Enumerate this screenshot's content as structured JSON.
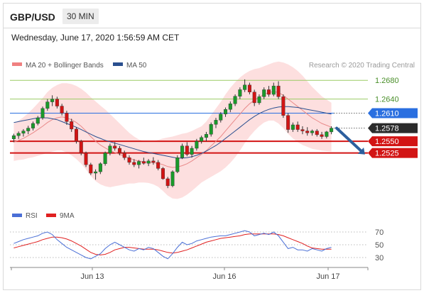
{
  "header": {
    "symbol": "GBP/USD",
    "timeframe": "30 MIN"
  },
  "datetime": "Wednesday, June 17, 2020 1:56:59 AM CET",
  "colors": {
    "up": "#1a9a2a",
    "down": "#d21414",
    "blue_level": "#2a6fe0",
    "band": "#fdd9d9",
    "ma20": "#e98a8a",
    "ma50": "#2a4f8f",
    "rsi": "#4a6fd6",
    "rsi_ma": "#e02020",
    "target_line": "#2c5f9e",
    "resistance_guide": "#9ccc65"
  },
  "chart_data": [
    {
      "type": "candlestick",
      "title": "GBP/USD",
      "legend": [
        {
          "label": "MA 20 + Bollinger Bands",
          "color": "#f08080"
        },
        {
          "label": "MA 50",
          "color": "#2a4f8f"
        }
      ],
      "credit": "Research © 2020 Trading Central",
      "x_ticks": [
        "Jun 13",
        "Jun 16",
        "Jun 17"
      ],
      "ylim": [
        1.242,
        1.27
      ],
      "ohlc": [
        [
          1.2555,
          1.2566,
          1.2548,
          1.2562
        ],
        [
          1.2562,
          1.2571,
          1.2555,
          1.2567
        ],
        [
          1.2567,
          1.2576,
          1.256,
          1.2572
        ],
        [
          1.2572,
          1.2583,
          1.2565,
          1.2578
        ],
        [
          1.2578,
          1.2592,
          1.2573,
          1.2588
        ],
        [
          1.2588,
          1.2604,
          1.2584,
          1.26
        ],
        [
          1.26,
          1.2624,
          1.2596,
          1.262
        ],
        [
          1.262,
          1.264,
          1.2615,
          1.2634
        ],
        [
          1.2634,
          1.2648,
          1.2625,
          1.264
        ],
        [
          1.264,
          1.2645,
          1.262,
          1.2625
        ],
        [
          1.2625,
          1.263,
          1.2605,
          1.261
        ],
        [
          1.261,
          1.2615,
          1.2585,
          1.2592
        ],
        [
          1.2592,
          1.2598,
          1.257,
          1.2576
        ],
        [
          1.2576,
          1.258,
          1.2545,
          1.255
        ],
        [
          1.255,
          1.2553,
          1.252,
          1.2525
        ],
        [
          1.2525,
          1.2528,
          1.2495,
          1.25
        ],
        [
          1.25,
          1.2504,
          1.2478,
          1.2482
        ],
        [
          1.2482,
          1.249,
          1.2468,
          1.2485
        ],
        [
          1.2485,
          1.2505,
          1.248,
          1.2502
        ],
        [
          1.2502,
          1.2528,
          1.2498,
          1.2525
        ],
        [
          1.2525,
          1.2545,
          1.252,
          1.254
        ],
        [
          1.254,
          1.2548,
          1.253,
          1.2535
        ],
        [
          1.2535,
          1.254,
          1.252,
          1.2525
        ],
        [
          1.2525,
          1.253,
          1.251,
          1.2515
        ],
        [
          1.2515,
          1.252,
          1.25,
          1.2505
        ],
        [
          1.2505,
          1.2512,
          1.2495,
          1.25
        ],
        [
          1.25,
          1.251,
          1.2492,
          1.2507
        ],
        [
          1.2507,
          1.2515,
          1.25,
          1.2503
        ],
        [
          1.2503,
          1.2512,
          1.2497,
          1.2508
        ],
        [
          1.2508,
          1.2516,
          1.25,
          1.2505
        ],
        [
          1.2505,
          1.251,
          1.2488,
          1.2492
        ],
        [
          1.2492,
          1.2495,
          1.2468,
          1.247
        ],
        [
          1.247,
          1.2474,
          1.245,
          1.2455
        ],
        [
          1.2455,
          1.2488,
          1.2452,
          1.2485
        ],
        [
          1.2485,
          1.252,
          1.2482,
          1.2515
        ],
        [
          1.2515,
          1.2545,
          1.2512,
          1.254
        ],
        [
          1.254,
          1.2548,
          1.2518,
          1.2522
        ],
        [
          1.2522,
          1.254,
          1.2515,
          1.2535
        ],
        [
          1.2535,
          1.2555,
          1.253,
          1.255
        ],
        [
          1.255,
          1.2562,
          1.2545,
          1.2558
        ],
        [
          1.2558,
          1.257,
          1.255,
          1.2565
        ],
        [
          1.2565,
          1.259,
          1.256,
          1.2586
        ],
        [
          1.2586,
          1.26,
          1.2578,
          1.2595
        ],
        [
          1.2595,
          1.2612,
          1.259,
          1.2608
        ],
        [
          1.2608,
          1.2622,
          1.2602,
          1.2618
        ],
        [
          1.2618,
          1.2635,
          1.2612,
          1.263
        ],
        [
          1.263,
          1.265,
          1.2625,
          1.2646
        ],
        [
          1.2646,
          1.2665,
          1.264,
          1.266
        ],
        [
          1.266,
          1.2682,
          1.2655,
          1.267
        ],
        [
          1.267,
          1.2675,
          1.265,
          1.2655
        ],
        [
          1.2655,
          1.266,
          1.2625,
          1.2632
        ],
        [
          1.2632,
          1.265,
          1.2628,
          1.2645
        ],
        [
          1.2645,
          1.2665,
          1.264,
          1.266
        ],
        [
          1.266,
          1.2668,
          1.2645,
          1.265
        ],
        [
          1.265,
          1.2675,
          1.2646,
          1.2668
        ],
        [
          1.2668,
          1.2678,
          1.264,
          1.2645
        ],
        [
          1.2645,
          1.265,
          1.26,
          1.2605
        ],
        [
          1.2605,
          1.261,
          1.2568,
          1.2575
        ],
        [
          1.2575,
          1.259,
          1.257,
          1.2585
        ],
        [
          1.2585,
          1.2592,
          1.257,
          1.2575
        ],
        [
          1.2575,
          1.2582,
          1.2565,
          1.2572
        ],
        [
          1.2572,
          1.258,
          1.2562,
          1.2568
        ],
        [
          1.2568,
          1.2575,
          1.2562,
          1.2572
        ],
        [
          1.2572,
          1.2576,
          1.256,
          1.2564
        ],
        [
          1.2564,
          1.257,
          1.2555,
          1.256
        ],
        [
          1.256,
          1.2572,
          1.2556,
          1.257
        ],
        [
          1.257,
          1.2582,
          1.2565,
          1.2578
        ]
      ],
      "ma20": [
        1.2548,
        1.2552,
        1.2556,
        1.2562,
        1.2568,
        1.2575,
        1.2582,
        1.259,
        1.2596,
        1.26,
        1.2602,
        1.26,
        1.2596,
        1.259,
        1.2582,
        1.2572,
        1.256,
        1.255,
        1.2542,
        1.2536,
        1.253,
        1.2526,
        1.2522,
        1.2518,
        1.2514,
        1.251,
        1.2508,
        1.2506,
        1.2505,
        1.2504,
        1.2503,
        1.25,
        1.2496,
        1.2494,
        1.2495,
        1.2498,
        1.2502,
        1.2508,
        1.2515,
        1.2522,
        1.253,
        1.254,
        1.255,
        1.256,
        1.2572,
        1.2584,
        1.2596,
        1.2608,
        1.262,
        1.263,
        1.2638,
        1.2644,
        1.265,
        1.2654,
        1.2656,
        1.2654,
        1.2648,
        1.264,
        1.2632,
        1.2624,
        1.2616,
        1.2608,
        1.26,
        1.2594,
        1.2588,
        1.2584,
        1.258
      ],
      "band_width": [
        0.004,
        0.0042,
        0.0045,
        0.0048,
        0.0052,
        0.0056,
        0.006,
        0.0065,
        0.0068,
        0.007,
        0.0072,
        0.0074,
        0.0076,
        0.0078,
        0.008,
        0.0082,
        0.0084,
        0.0085,
        0.0084,
        0.0082,
        0.0078,
        0.0072,
        0.0066,
        0.006,
        0.0054,
        0.005,
        0.0046,
        0.0044,
        0.0044,
        0.0046,
        0.005,
        0.0056,
        0.0062,
        0.0066,
        0.0068,
        0.0068,
        0.0066,
        0.0064,
        0.0062,
        0.006,
        0.0062,
        0.0066,
        0.007,
        0.0074,
        0.0078,
        0.008,
        0.008,
        0.0078,
        0.0074,
        0.007,
        0.0066,
        0.0062,
        0.006,
        0.006,
        0.0062,
        0.0066,
        0.007,
        0.0074,
        0.0076,
        0.0076,
        0.0074,
        0.007,
        0.0066,
        0.0062,
        0.0058,
        0.0055,
        0.0052
      ],
      "ma50": [
        1.259,
        1.2592,
        1.2594,
        1.2596,
        1.2598,
        1.26,
        1.26,
        1.26,
        1.2598,
        1.2596,
        1.2592,
        1.2588,
        1.2584,
        1.258,
        1.2575,
        1.257,
        1.2565,
        1.256,
        1.2556,
        1.2552,
        1.2549,
        1.2546,
        1.2543,
        1.254,
        1.2537,
        1.2534,
        1.2531,
        1.2528,
        1.2526,
        1.2524,
        1.2522,
        1.252,
        1.2518,
        1.2516,
        1.2514,
        1.2514,
        1.2515,
        1.2517,
        1.252,
        1.2524,
        1.2529,
        1.2535,
        1.2541,
        1.2548,
        1.2556,
        1.2564,
        1.2572,
        1.258,
        1.2588,
        1.2596,
        1.2603,
        1.2609,
        1.2614,
        1.2618,
        1.2621,
        1.2623,
        1.2624,
        1.2624,
        1.2623,
        1.2622,
        1.262,
        1.2618,
        1.2616,
        1.2614,
        1.2612,
        1.261,
        1.2608
      ],
      "levels": [
        {
          "value": 1.268,
          "label": "1.2680",
          "kind": "resistance"
        },
        {
          "value": 1.264,
          "label": "1.2640",
          "kind": "resistance"
        },
        {
          "value": 1.261,
          "label": "1.2610",
          "kind": "pivot"
        },
        {
          "value": 1.2578,
          "label": "1.2578",
          "kind": "last"
        },
        {
          "value": 1.255,
          "label": "1.2550",
          "kind": "support"
        },
        {
          "value": 1.2525,
          "label": "1.2525",
          "kind": "support"
        }
      ],
      "forecast_arrow": {
        "from": 1.2578,
        "to": 1.253
      }
    },
    {
      "type": "line",
      "legend": [
        {
          "label": "RSI",
          "color": "#4a6fd6"
        },
        {
          "label": "9MA",
          "color": "#e02020"
        }
      ],
      "ylim": [
        20,
        80
      ],
      "y_ticks": [
        "70",
        "50",
        "30"
      ],
      "rsi": [
        52,
        55,
        58,
        60,
        62,
        64,
        68,
        70,
        66,
        58,
        52,
        46,
        42,
        38,
        34,
        30,
        28,
        32,
        36,
        44,
        50,
        54,
        50,
        46,
        42,
        40,
        44,
        42,
        46,
        44,
        38,
        32,
        28,
        36,
        46,
        54,
        50,
        52,
        56,
        58,
        60,
        62,
        63,
        64,
        64,
        66,
        68,
        70,
        72,
        70,
        64,
        66,
        68,
        66,
        70,
        64,
        54,
        44,
        46,
        42,
        42,
        40,
        44,
        42,
        40,
        44,
        46
      ],
      "rsi_ma": [
        45,
        47,
        49,
        51,
        53,
        55,
        58,
        60,
        62,
        62,
        61,
        59,
        56,
        52,
        48,
        43,
        38,
        35,
        34,
        35,
        38,
        42,
        44,
        46,
        46,
        45,
        44,
        43,
        43,
        43,
        42,
        40,
        38,
        37,
        38,
        40,
        42,
        45,
        48,
        51,
        54,
        56,
        58,
        60,
        61,
        62,
        63,
        64,
        66,
        67,
        67,
        67,
        67,
        67,
        67,
        66,
        64,
        61,
        58,
        55,
        52,
        48,
        45,
        44,
        43,
        43,
        43
      ]
    }
  ]
}
